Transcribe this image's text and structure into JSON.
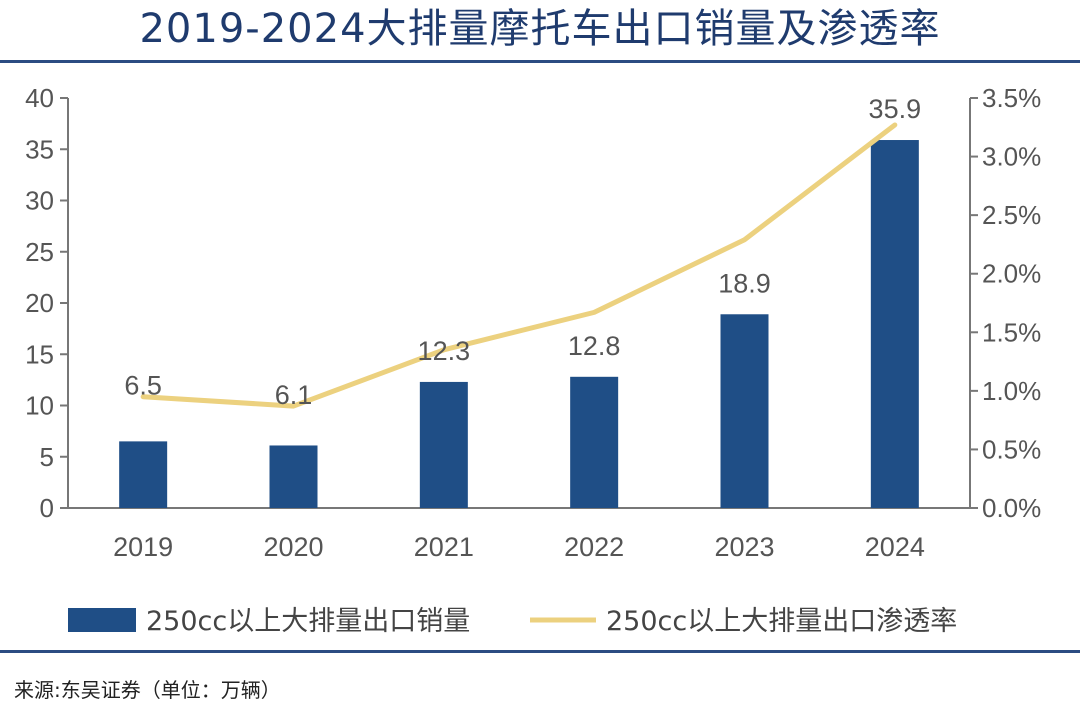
{
  "title": "2019-2024大排量摩托车出口销量及渗透率",
  "source": "来源:东吴证券（单位：万辆）",
  "colors": {
    "bar": "#1f4e86",
    "line": "#ecd17f",
    "rule": "#2b4c82",
    "axis": "#777777"
  },
  "chart_data": {
    "type": "bar",
    "categories": [
      "2019",
      "2020",
      "2021",
      "2022",
      "2023",
      "2024"
    ],
    "series": [
      {
        "name": "250cc以上大排量出口销量",
        "type": "bar",
        "axis": "left",
        "values": [
          6.5,
          6.1,
          12.3,
          12.8,
          18.9,
          35.9
        ],
        "labels": [
          "6.5",
          "6.1",
          "12.3",
          "12.8",
          "18.9",
          "35.9"
        ]
      },
      {
        "name": "250cc以上大排量出口渗透率",
        "type": "line",
        "axis": "right",
        "values": [
          0.95,
          0.87,
          1.35,
          1.67,
          2.29,
          3.27
        ]
      }
    ],
    "y_left": {
      "ylim": [
        0,
        40
      ],
      "ticks": [
        "0",
        "5",
        "10",
        "15",
        "20",
        "25",
        "30",
        "35",
        "40"
      ]
    },
    "y_right": {
      "ylim": [
        0,
        3.5
      ],
      "ticks": [
        "0.0%",
        "0.5%",
        "1.0%",
        "1.5%",
        "2.0%",
        "2.5%",
        "3.0%",
        "3.5%"
      ]
    },
    "grid": false,
    "legend": "bottom"
  }
}
